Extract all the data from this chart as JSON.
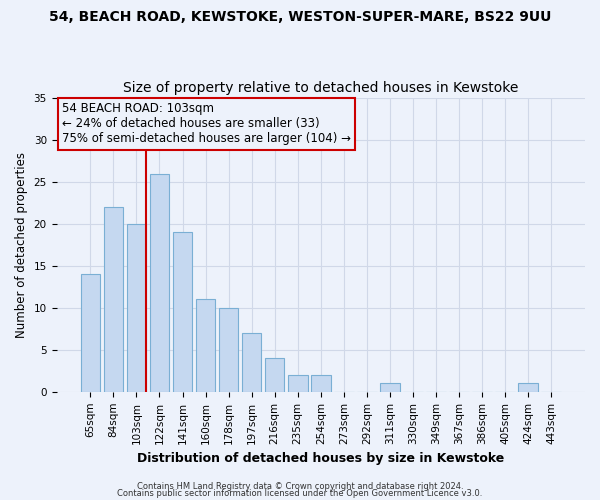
{
  "title1": "54, BEACH ROAD, KEWSTOKE, WESTON-SUPER-MARE, BS22 9UU",
  "title2": "Size of property relative to detached houses in Kewstoke",
  "xlabel": "Distribution of detached houses by size in Kewstoke",
  "ylabel": "Number of detached properties",
  "categories": [
    "65sqm",
    "84sqm",
    "103sqm",
    "122sqm",
    "141sqm",
    "160sqm",
    "178sqm",
    "197sqm",
    "216sqm",
    "235sqm",
    "254sqm",
    "273sqm",
    "292sqm",
    "311sqm",
    "330sqm",
    "349sqm",
    "367sqm",
    "386sqm",
    "405sqm",
    "424sqm",
    "443sqm"
  ],
  "values": [
    14,
    22,
    20,
    26,
    19,
    11,
    10,
    7,
    4,
    2,
    2,
    0,
    0,
    1,
    0,
    0,
    0,
    0,
    0,
    1,
    0
  ],
  "bar_color": "#c5d8f0",
  "bar_edge_color": "#7aafd4",
  "highlight_index": 2,
  "highlight_line_color": "#cc0000",
  "annotation_line1": "54 BEACH ROAD: 103sqm",
  "annotation_line2": "← 24% of detached houses are smaller (33)",
  "annotation_line3": "75% of semi-detached houses are larger (104) →",
  "annotation_box_color": "#cc0000",
  "ylim": [
    0,
    35
  ],
  "yticks": [
    0,
    5,
    10,
    15,
    20,
    25,
    30,
    35
  ],
  "footnote1": "Contains HM Land Registry data © Crown copyright and database right 2024.",
  "footnote2": "Contains public sector information licensed under the Open Government Licence v3.0.",
  "background_color": "#edf2fb",
  "grid_color": "#d0d8e8",
  "title1_fontsize": 10,
  "title2_fontsize": 10,
  "xlabel_fontsize": 9,
  "ylabel_fontsize": 8.5,
  "tick_fontsize": 7.5,
  "annotation_fontsize": 8.5,
  "footnote_fontsize": 6
}
